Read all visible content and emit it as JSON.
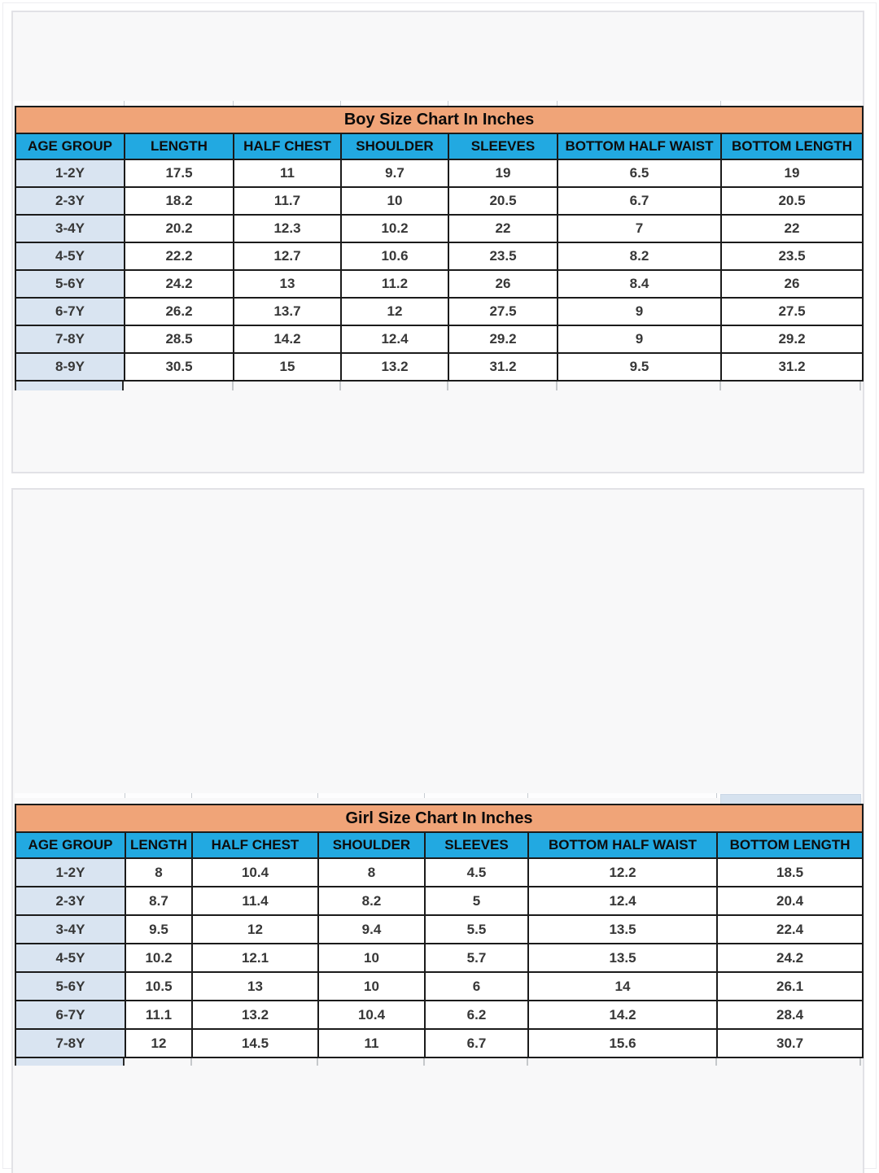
{
  "colors": {
    "title_bg": "#f0a478",
    "header_bg": "#22a9e1",
    "age_column_bg": "#d9e4f1",
    "grid_line": "#1b1b1b",
    "card_bg": "#f8f8f9"
  },
  "boy_chart": {
    "title": "Boy Size Chart In Inches",
    "columns": [
      "AGE GROUP",
      "LENGTH",
      "HALF CHEST",
      "SHOULDER",
      "SLEEVES",
      "BOTTOM HALF WAIST",
      "BOTTOM LENGTH"
    ],
    "rows": [
      [
        "1-2Y",
        "17.5",
        "11",
        "9.7",
        "19",
        "6.5",
        "19"
      ],
      [
        "2-3Y",
        "18.2",
        "11.7",
        "10",
        "20.5",
        "6.7",
        "20.5"
      ],
      [
        "3-4Y",
        "20.2",
        "12.3",
        "10.2",
        "22",
        "7",
        "22"
      ],
      [
        "4-5Y",
        "22.2",
        "12.7",
        "10.6",
        "23.5",
        "8.2",
        "23.5"
      ],
      [
        "5-6Y",
        "24.2",
        "13",
        "11.2",
        "26",
        "8.4",
        "26"
      ],
      [
        "6-7Y",
        "26.2",
        "13.7",
        "12",
        "27.5",
        "9",
        "27.5"
      ],
      [
        "7-8Y",
        "28.5",
        "14.2",
        "12.4",
        "29.2",
        "9",
        "29.2"
      ],
      [
        "8-9Y",
        "30.5",
        "15",
        "13.2",
        "31.2",
        "9.5",
        "31.2"
      ]
    ]
  },
  "girl_chart": {
    "title": "Girl Size Chart In Inches",
    "columns": [
      "AGE GROUP",
      "LENGTH",
      "HALF CHEST",
      "SHOULDER",
      "SLEEVES",
      "BOTTOM HALF WAIST",
      "BOTTOM LENGTH"
    ],
    "rows": [
      [
        "1-2Y",
        "8",
        "10.4",
        "8",
        "4.5",
        "12.2",
        "18.5"
      ],
      [
        "2-3Y",
        "8.7",
        "11.4",
        "8.2",
        "5",
        "12.4",
        "20.4"
      ],
      [
        "3-4Y",
        "9.5",
        "12",
        "9.4",
        "5.5",
        "13.5",
        "22.4"
      ],
      [
        "4-5Y",
        "10.2",
        "12.1",
        "10",
        "5.7",
        "13.5",
        "24.2"
      ],
      [
        "5-6Y",
        "10.5",
        "13",
        "10",
        "6",
        "14",
        "26.1"
      ],
      [
        "6-7Y",
        "11.1",
        "13.2",
        "10.4",
        "6.2",
        "14.2",
        "28.4"
      ],
      [
        "7-8Y",
        "12",
        "14.5",
        "11",
        "6.7",
        "15.6",
        "30.7"
      ]
    ]
  }
}
